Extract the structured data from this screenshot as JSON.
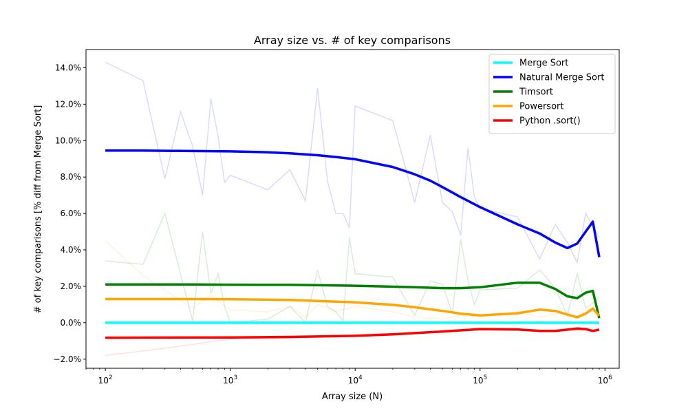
{
  "chart_data": {
    "type": "line",
    "title": "Array size vs. # of key comparisons",
    "xlabel": "Array size (N)",
    "ylabel": "# of key comparisons [% diff from Merge Sort]",
    "xscale": "log",
    "xlim": [
      70,
      1300000
    ],
    "ylim": [
      -2.5,
      15.0
    ],
    "x_ticks": [
      {
        "base": "10",
        "exp": "2",
        "value": 100
      },
      {
        "base": "10",
        "exp": "3",
        "value": 1000
      },
      {
        "base": "10",
        "exp": "4",
        "value": 10000
      },
      {
        "base": "10",
        "exp": "5",
        "value": 100000
      },
      {
        "base": "10",
        "exp": "6",
        "value": 1000000
      }
    ],
    "y_ticks": [
      {
        "label": "−2.0%",
        "value": -2
      },
      {
        "label": "0.0%",
        "value": 0
      },
      {
        "label": "2.0%",
        "value": 2
      },
      {
        "label": "4.0%",
        "value": 4
      },
      {
        "label": "6.0%",
        "value": 6
      },
      {
        "label": "8.0%",
        "value": 8
      },
      {
        "label": "10.0%",
        "value": 10
      },
      {
        "label": "12.0%",
        "value": 12
      },
      {
        "label": "14.0%",
        "value": 14
      }
    ],
    "grid": false,
    "legend_position": "top-right",
    "series": [
      {
        "name": "Merge Sort",
        "color": "#00ffff",
        "x": [
          100,
          900000
        ],
        "y": [
          0.0,
          0.0
        ]
      },
      {
        "name": "Natural Merge Sort",
        "color": "#0000ff",
        "x": [
          100,
          200,
          500,
          1000,
          2000,
          3000,
          5000,
          7000,
          10000,
          20000,
          30000,
          40000,
          50000,
          70000,
          100000,
          200000,
          300000,
          400000,
          500000,
          600000,
          700000,
          800000,
          900000
        ],
        "y": [
          9.45,
          9.45,
          9.43,
          9.41,
          9.36,
          9.3,
          9.2,
          9.1,
          8.98,
          8.55,
          8.15,
          7.8,
          7.45,
          6.9,
          6.35,
          5.4,
          4.9,
          4.4,
          4.1,
          4.35,
          5.0,
          5.55,
          3.6
        ]
      },
      {
        "name": "Timsort",
        "color": "#008000",
        "x": [
          100,
          500,
          1000,
          3000,
          10000,
          30000,
          50000,
          70000,
          100000,
          200000,
          300000,
          400000,
          500000,
          600000,
          700000,
          800000,
          900000
        ],
        "y": [
          2.1,
          2.1,
          2.09,
          2.08,
          2.03,
          1.95,
          1.9,
          1.9,
          1.95,
          2.2,
          2.2,
          1.85,
          1.45,
          1.35,
          1.65,
          1.75,
          0.25
        ]
      },
      {
        "name": "Powersort",
        "color": "#ffa500",
        "x": [
          100,
          500,
          1000,
          3000,
          10000,
          20000,
          30000,
          50000,
          70000,
          100000,
          200000,
          300000,
          400000,
          500000,
          600000,
          700000,
          800000,
          900000
        ],
        "y": [
          1.3,
          1.3,
          1.29,
          1.25,
          1.12,
          0.98,
          0.85,
          0.65,
          0.5,
          0.4,
          0.52,
          0.72,
          0.65,
          0.45,
          0.3,
          0.5,
          0.78,
          0.38
        ]
      },
      {
        "name": "Python .sort()",
        "color": "#ff0000",
        "x": [
          100,
          1000,
          3000,
          10000,
          20000,
          50000,
          100000,
          200000,
          300000,
          400000,
          500000,
          600000,
          700000,
          800000,
          900000
        ],
        "y": [
          -0.82,
          -0.81,
          -0.78,
          -0.72,
          -0.64,
          -0.48,
          -0.35,
          -0.37,
          -0.45,
          -0.45,
          -0.38,
          -0.32,
          -0.35,
          -0.45,
          -0.38
        ]
      }
    ],
    "background_series": [
      {
        "of": "Natural Merge Sort",
        "color": "#0000ff",
        "opacity": 0.15,
        "x": [
          100,
          200,
          300,
          400,
          500,
          600,
          700,
          800,
          900,
          1000,
          2000,
          3000,
          4000,
          5000,
          6000,
          7000,
          8000,
          9000,
          10000,
          20000,
          30000,
          40000,
          50000,
          60000,
          70000,
          80000,
          90000,
          100000,
          200000,
          300000,
          400000,
          500000,
          600000,
          700000,
          800000,
          900000
        ],
        "y": [
          14.3,
          13.3,
          7.9,
          11.6,
          9.7,
          7.0,
          12.3,
          10.2,
          7.7,
          8.1,
          7.3,
          8.4,
          6.7,
          12.9,
          7.8,
          6.0,
          6.0,
          5.2,
          11.9,
          11.1,
          6.6,
          10.3,
          6.6,
          6.1,
          4.8,
          9.6,
          6.9,
          6.3,
          5.8,
          3.5,
          5.4,
          4.4,
          3.3,
          6.0,
          5.3,
          4.7
        ]
      },
      {
        "of": "Timsort",
        "color": "#008000",
        "opacity": 0.15,
        "x": [
          100,
          200,
          300,
          500,
          600,
          700,
          800,
          900,
          1000,
          2000,
          3000,
          4000,
          5000,
          6000,
          7000,
          8000,
          9000,
          10000,
          20000,
          30000,
          40000,
          50000,
          60000,
          70000,
          80000,
          90000,
          100000,
          200000,
          300000,
          400000,
          500000,
          600000,
          700000,
          800000,
          900000
        ],
        "y": [
          3.4,
          3.2,
          6.0,
          0.1,
          5.0,
          1.6,
          2.7,
          0.9,
          0.0,
          0.2,
          0.9,
          0.0,
          2.9,
          0.9,
          0.6,
          0.1,
          4.7,
          2.7,
          2.5,
          0.4,
          2.3,
          2.1,
          0.5,
          4.6,
          2.3,
          1.0,
          1.8,
          1.9,
          2.9,
          1.9,
          0.4,
          2.7,
          0.8,
          1.1,
          1.4
        ]
      },
      {
        "of": "Powersort",
        "color": "#ffa500",
        "opacity": 0.15,
        "x": [
          100,
          200,
          300,
          500,
          700,
          1000,
          2000,
          3000,
          4000,
          5000,
          7000,
          10000,
          20000,
          30000,
          50000,
          70000,
          100000,
          200000,
          300000,
          500000,
          600000,
          700000,
          800000,
          900000
        ],
        "y": [
          4.5,
          2.6,
          1.8,
          0.8,
          1.5,
          0.7,
          0.6,
          0.9,
          0.3,
          1.0,
          0.6,
          0.9,
          0.6,
          0.3,
          0.2,
          0.4,
          0.3,
          0.6,
          0.3,
          0.6,
          0.2,
          0.4,
          0.7,
          0.3
        ]
      },
      {
        "of": "Python .sort()",
        "color": "#ff0000",
        "opacity": 0.12,
        "x": [
          100,
          300,
          1000,
          3000,
          10000,
          30000,
          100000,
          300000,
          900000
        ],
        "y": [
          -1.8,
          -1.4,
          -0.9,
          -0.85,
          -0.75,
          -0.6,
          -0.4,
          -0.45,
          -0.4
        ]
      }
    ]
  }
}
